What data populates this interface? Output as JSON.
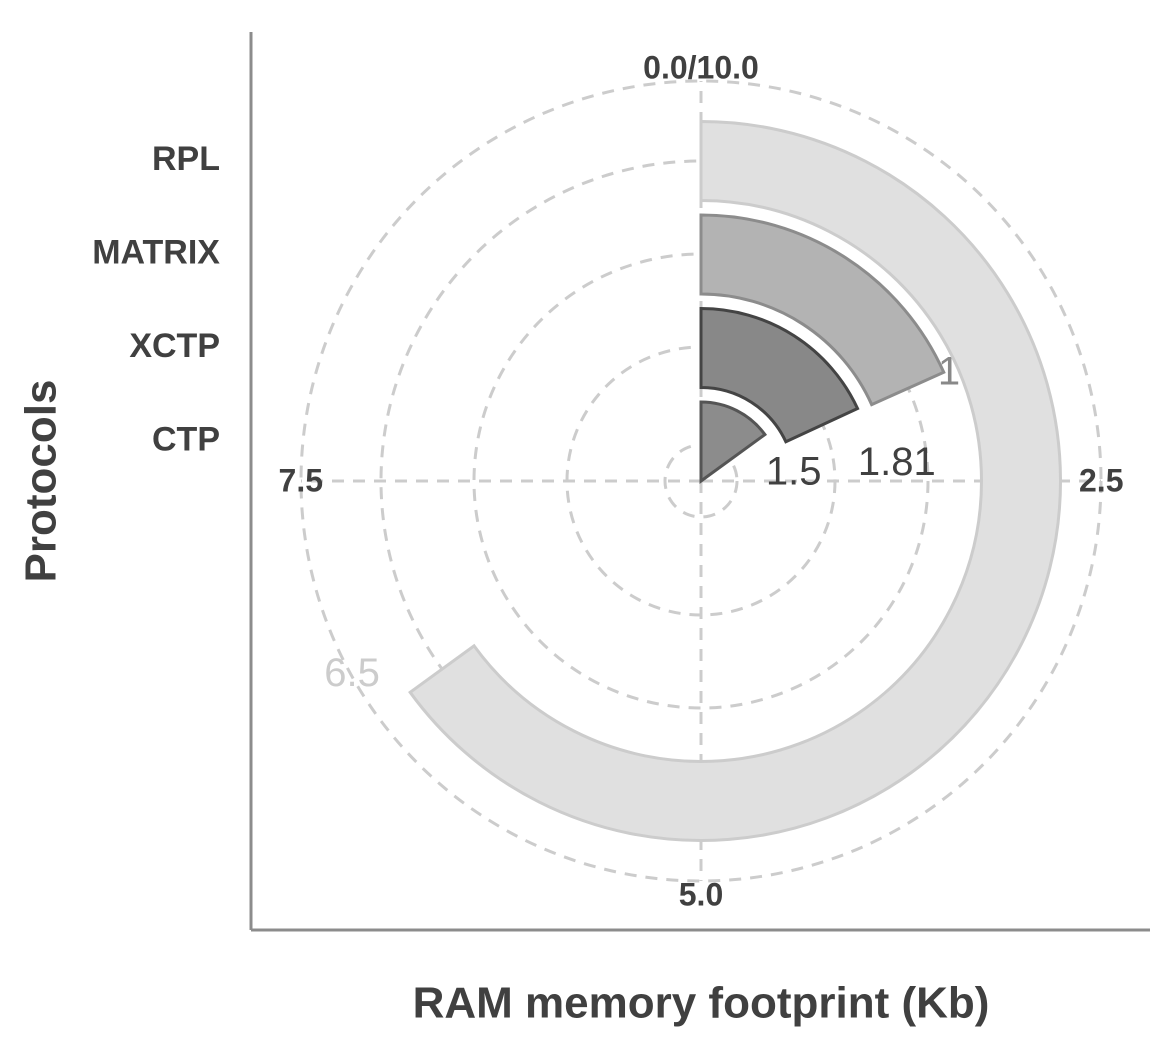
{
  "chart_data": {
    "type": "radial-bar",
    "x_label": "RAM memory footprint (Kb)",
    "y_label": "Protocols",
    "categories": [
      "CTP",
      "XCTP",
      "MATRIX",
      "RPL"
    ],
    "values": [
      1.5,
      1.81,
      1.83,
      6.5
    ],
    "colors": [
      "#8c8c8c",
      "#888888",
      "#b3b3b3",
      "#e0e0e0"
    ],
    "edge_colors": [
      "#555555",
      "#444444",
      "#8c8c8c",
      "#cccccc"
    ],
    "label_colors": [
      "#404040",
      "#404040",
      "#888888",
      "#cccccc"
    ],
    "xlim": [
      0,
      10
    ],
    "xticks": [
      {
        "value": 0,
        "label": "0.0/10.0"
      },
      2.5,
      {
        "value": 5,
        "label": "5.0"
      },
      7.5
    ],
    "grid": true
  }
}
